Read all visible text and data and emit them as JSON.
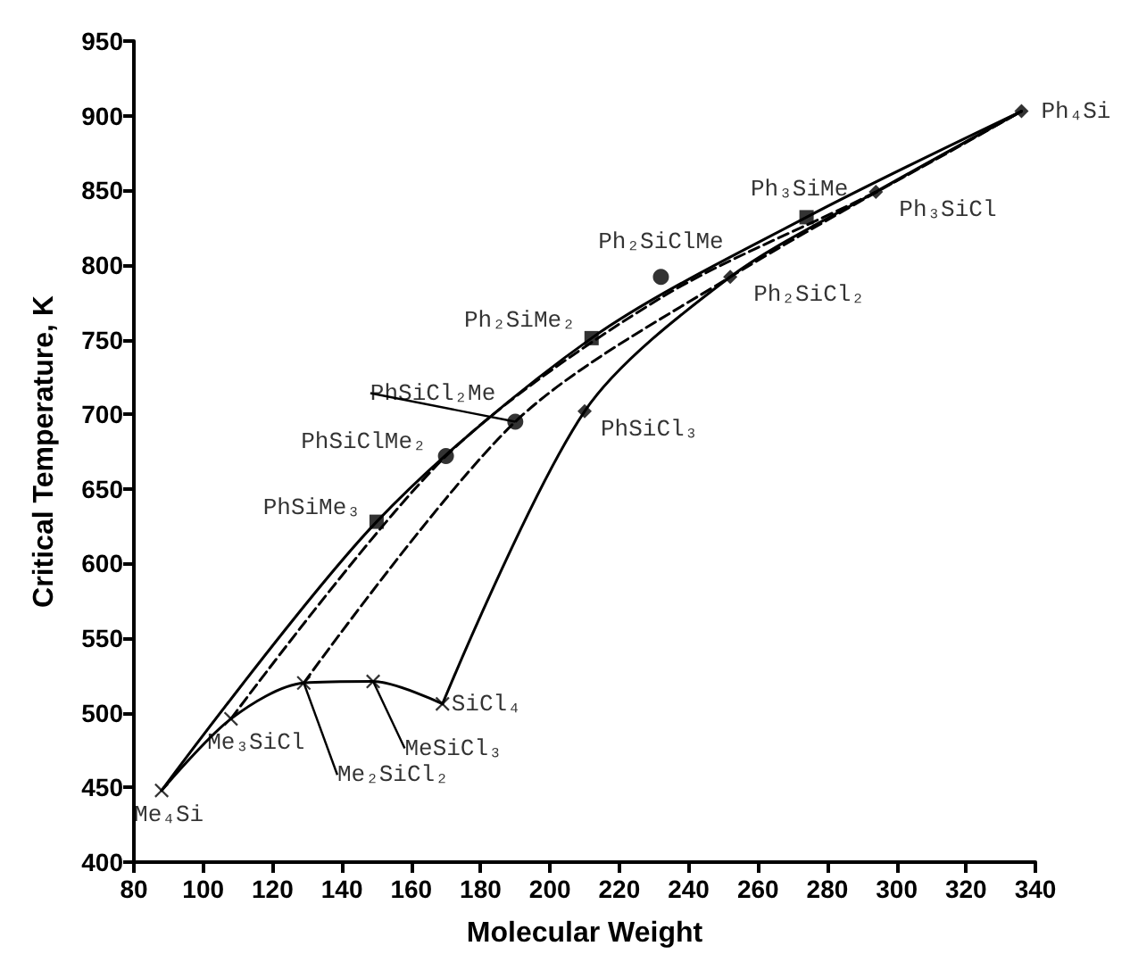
{
  "chart_data": {
    "type": "scatter",
    "xlabel": "Molecular Weight",
    "ylabel": "Critical Temperature, K",
    "xlim": [
      80,
      340
    ],
    "xticks": [
      80,
      100,
      120,
      140,
      160,
      180,
      200,
      220,
      240,
      260,
      280,
      300,
      320,
      340
    ],
    "ylim": [
      400,
      950
    ],
    "yticks": [
      400,
      450,
      500,
      550,
      600,
      650,
      700,
      750,
      800,
      850,
      900,
      950
    ],
    "grid": false,
    "series": [
      {
        "type": "line",
        "color": "#000000",
        "line_style": "solid",
        "marker": "none",
        "x": [
          88,
          108,
          129,
          149,
          169
        ],
        "values": [
          448,
          496,
          520,
          521,
          506
        ]
      },
      {
        "type": "line",
        "color": "#000000",
        "line_style": "solid",
        "marker": "none",
        "x": [
          88,
          150,
          212,
          274,
          336
        ],
        "values": [
          448,
          628,
          751,
          832,
          903
        ]
      },
      {
        "type": "line",
        "color": "#000000",
        "line_style": "dashed",
        "marker": "none",
        "x": [
          108,
          170,
          232,
          294,
          336
        ],
        "values": [
          496,
          672,
          778,
          849,
          903
        ]
      },
      {
        "type": "line",
        "color": "#000000",
        "line_style": "dashed",
        "marker": "none",
        "x": [
          129,
          190,
          252,
          336
        ],
        "values": [
          520,
          695,
          792,
          903
        ]
      },
      {
        "type": "line",
        "color": "#000000",
        "line_style": "solid",
        "marker": "none",
        "x": [
          169,
          210,
          252,
          294,
          336
        ],
        "values": [
          506,
          702,
          792,
          849,
          903
        ]
      },
      {
        "color": "#000000",
        "marker": "cross",
        "x": [
          88,
          108,
          129,
          149,
          169
        ],
        "values": [
          448,
          496,
          520,
          521,
          506
        ]
      },
      {
        "color": "#000000",
        "marker": "square",
        "x": [
          150,
          212,
          274
        ],
        "values": [
          628,
          751,
          832
        ]
      },
      {
        "color": "#000000",
        "marker": "circle",
        "x": [
          170,
          190,
          232
        ],
        "values": [
          672,
          695,
          792
        ]
      },
      {
        "color": "#000000",
        "marker": "diamond",
        "x": [
          210,
          252,
          294,
          336
        ],
        "values": [
          702,
          792,
          849,
          903
        ]
      }
    ],
    "annotations": [
      {
        "text": "Me₄Si",
        "x": 88,
        "y": 448
      },
      {
        "text": "Me₃SiCl",
        "x": 108,
        "y": 496
      },
      {
        "text": "Me₂SiCl₂",
        "x": 129,
        "y": 520
      },
      {
        "text": "MeSiCl₃",
        "x": 149,
        "y": 521
      },
      {
        "text": "SiCl₄",
        "x": 169,
        "y": 506
      },
      {
        "text": "PhSiMe₃",
        "x": 150,
        "y": 628
      },
      {
        "text": "PhSiClMe₂",
        "x": 170,
        "y": 672
      },
      {
        "text": "PhSiCl₂Me",
        "x": 190,
        "y": 695
      },
      {
        "text": "PhSiCl₃",
        "x": 210,
        "y": 702
      },
      {
        "text": "Ph₂SiMe₂",
        "x": 212,
        "y": 751
      },
      {
        "text": "Ph₂SiClMe",
        "x": 232,
        "y": 792
      },
      {
        "text": "Ph₂SiCl₂",
        "x": 252,
        "y": 792
      },
      {
        "text": "Ph₃SiMe",
        "x": 274,
        "y": 832
      },
      {
        "text": "Ph₃SiCl",
        "x": 294,
        "y": 849
      },
      {
        "text": "Ph₄Si",
        "x": 336,
        "y": 903
      }
    ]
  }
}
